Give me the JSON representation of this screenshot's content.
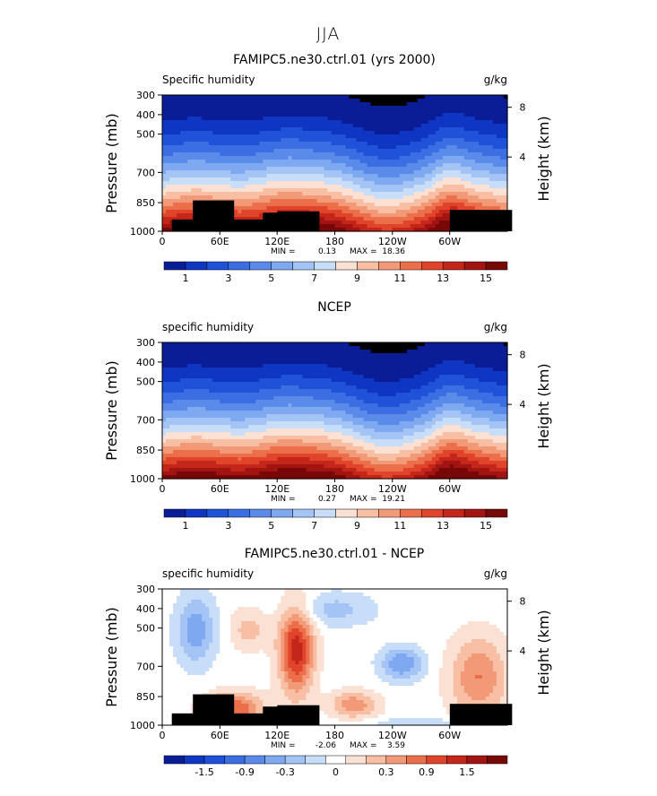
{
  "page_title": "JJA",
  "chart_data": [
    {
      "type": "heatmap",
      "title": "FAMIPC5.ne30.ctrl.01 (yrs 2000)",
      "left_label": "Specific humidity",
      "right_label": "g/kg",
      "ylabel": "Pressure (mb)",
      "y2label": "Height (km)",
      "y_ticks": [
        "300",
        "400",
        "500",
        "700",
        "850",
        "1000"
      ],
      "y2_ticks": [
        "8",
        "4"
      ],
      "x_ticks": [
        "0",
        "60E",
        "120E",
        "180",
        "120W",
        "60W"
      ],
      "minmax": {
        "min_label": "MIN =",
        "min": "0.13",
        "max_label": "MAX =",
        "max": "18.36"
      },
      "colorbar_labels": [
        "1",
        "3",
        "5",
        "7",
        "9",
        "11",
        "13",
        "15"
      ],
      "colors": [
        "#0a1d96",
        "#0e36c2",
        "#1f52d8",
        "#3a6ee2",
        "#5a8bea",
        "#7ea8f0",
        "#a4c4f5",
        "#c8ddf8",
        "#fbe1d3",
        "#f8bfa4",
        "#f29a78",
        "#ec6f4c",
        "#e0452b",
        "#c4261a",
        "#a11412",
        "#780808"
      ]
    },
    {
      "type": "heatmap",
      "title": "NCEP",
      "left_label": "specific humidity",
      "right_label": "g/kg",
      "ylabel": "Pressure (mb)",
      "y2label": "Height (km)",
      "y_ticks": [
        "300",
        "400",
        "500",
        "700",
        "850",
        "1000"
      ],
      "y2_ticks": [
        "8",
        "4"
      ],
      "x_ticks": [
        "0",
        "60E",
        "120E",
        "180",
        "120W",
        "60W"
      ],
      "minmax": {
        "min_label": "MIN =",
        "min": "0.27",
        "max_label": "MAX =",
        "max": "19.21"
      },
      "colorbar_labels": [
        "1",
        "3",
        "5",
        "7",
        "9",
        "11",
        "13",
        "15"
      ],
      "colors": [
        "#0a1d96",
        "#0e36c2",
        "#1f52d8",
        "#3a6ee2",
        "#5a8bea",
        "#7ea8f0",
        "#a4c4f5",
        "#c8ddf8",
        "#fbe1d3",
        "#f8bfa4",
        "#f29a78",
        "#ec6f4c",
        "#e0452b",
        "#c4261a",
        "#a11412",
        "#780808"
      ]
    },
    {
      "type": "heatmap",
      "title": "FAMIPC5.ne30.ctrl.01 - NCEP",
      "left_label": "specific humidity",
      "right_label": "g/kg",
      "ylabel": "Pressure (mb)",
      "y2label": "Height (km)",
      "y_ticks": [
        "300",
        "400",
        "500",
        "700",
        "850",
        "1000"
      ],
      "y2_ticks": [
        "8",
        "4"
      ],
      "x_ticks": [
        "0",
        "60E",
        "120E",
        "180",
        "120W",
        "60W"
      ],
      "minmax": {
        "min_label": "MIN =",
        "min": "-2.06",
        "max_label": "MAX =",
        "max": "3.59"
      },
      "colorbar_labels": [
        "-1.5",
        "-0.9",
        "-0.3",
        "0",
        "0.3",
        "0.9",
        "1.5"
      ],
      "colors": [
        "#0a1d96",
        "#0e36c2",
        "#1f52d8",
        "#3a6ee2",
        "#5a8bea",
        "#7ea8f0",
        "#a4c4f5",
        "#c8ddf8",
        "#ffffff",
        "#fbe1d3",
        "#f8bfa4",
        "#f29a78",
        "#ec6f4c",
        "#e0452b",
        "#c4261a",
        "#a11412",
        "#780808"
      ]
    }
  ]
}
